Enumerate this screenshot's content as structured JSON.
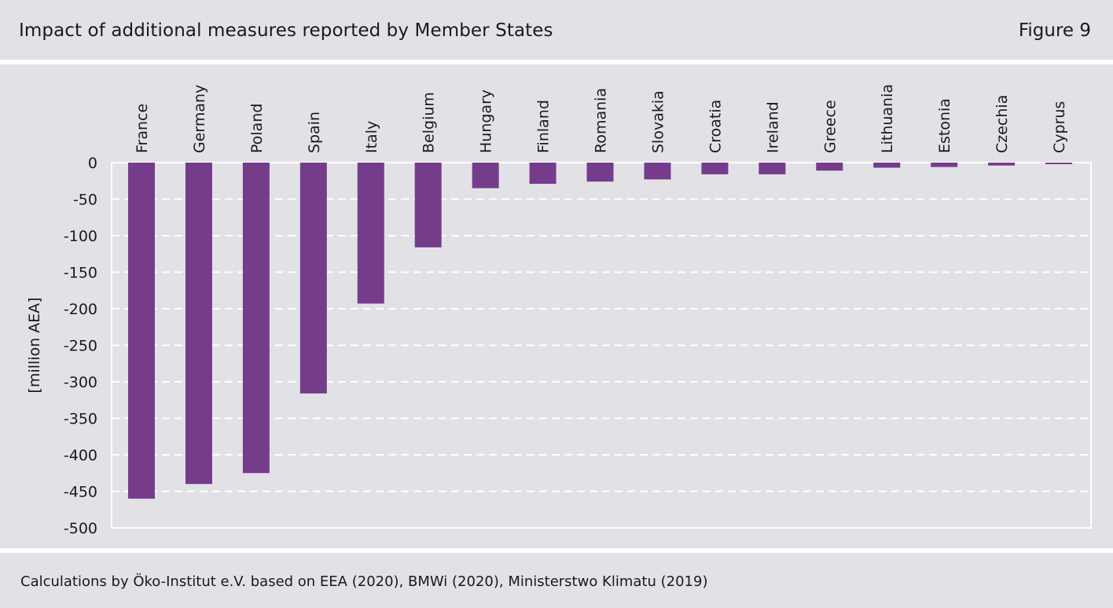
{
  "header": {
    "title": "Impact of additional measures reported by Member States",
    "figure_label": "Figure 9"
  },
  "footer": {
    "source": "Calculations by Öko-Institut e.V. based on EEA (2020), BMWi (2020), Ministerstwo Klimatu (2019)"
  },
  "colors": {
    "bar": "#763c8c",
    "background": "#e2e2e6",
    "grid": "#ffffff"
  },
  "chart_data": {
    "type": "bar",
    "title": "Impact of additional measures reported by Member States",
    "ylabel": "[million AEA]",
    "xlabel": "",
    "ylim": [
      -500,
      0
    ],
    "yticks": [
      0,
      -50,
      -100,
      -150,
      -200,
      -250,
      -300,
      -350,
      -400,
      -450,
      -500
    ],
    "grid": true,
    "category_label_position": "top, rotated vertical",
    "categories": [
      "France",
      "Germany",
      "Poland",
      "Spain",
      "Italy",
      "Belgium",
      "Hungary",
      "Finland",
      "Romania",
      "Slovakia",
      "Croatia",
      "Ireland",
      "Greece",
      "Lithuania",
      "Estonia",
      "Czechia",
      "Cyprus"
    ],
    "values": [
      -460,
      -440,
      -425,
      -316,
      -193,
      -116,
      -35,
      -29,
      -26,
      -23,
      -16,
      -16,
      -11,
      -7,
      -6,
      -4,
      -2
    ]
  }
}
